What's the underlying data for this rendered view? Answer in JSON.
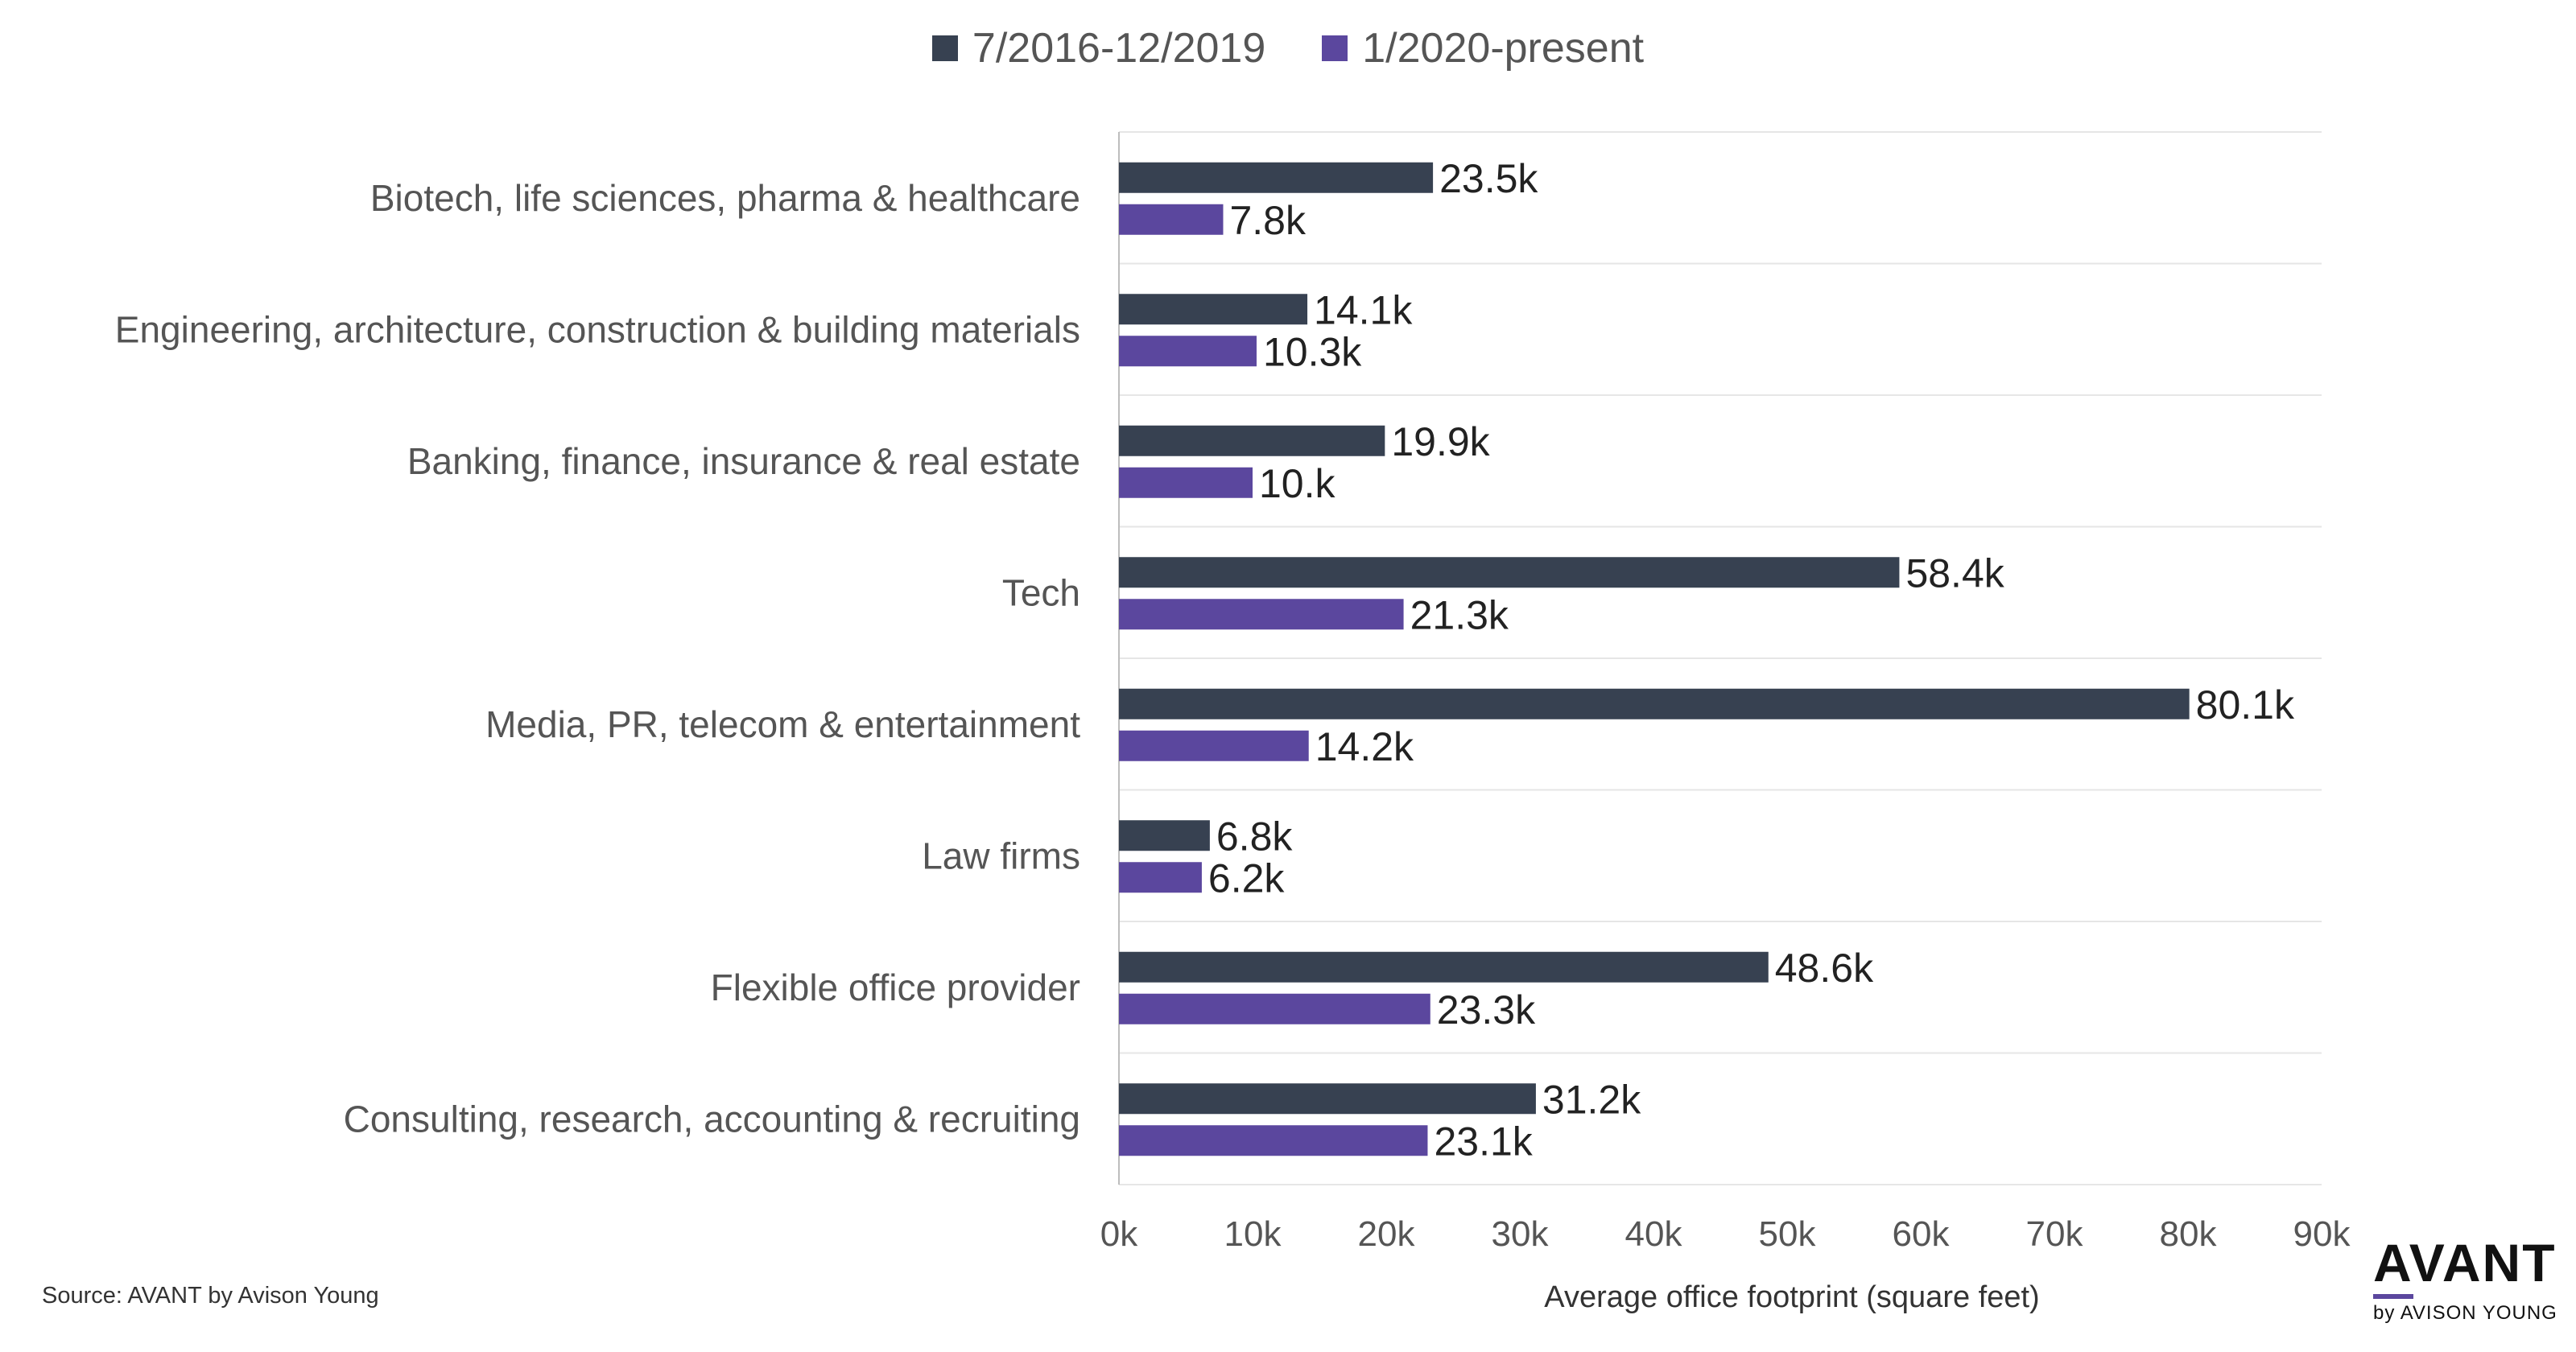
{
  "chart_data": {
    "type": "bar",
    "orientation": "horizontal",
    "categories": [
      "Biotech, life sciences, pharma & healthcare",
      "Engineering, architecture, construction & building materials",
      "Banking, finance, insurance & real estate",
      "Tech",
      "Media, PR, telecom & entertainment",
      "Law firms",
      "Flexible office provider",
      "Consulting, research, accounting & recruiting"
    ],
    "series": [
      {
        "name": "7/2016-12/2019",
        "color": "#374151",
        "values": [
          23.5,
          14.1,
          19.9,
          58.4,
          80.1,
          6.8,
          48.6,
          31.2
        ],
        "labels": [
          "23.5k",
          "14.1k",
          "19.9k",
          "58.4k",
          "80.1k",
          "6.8k",
          "48.6k",
          "31.2k"
        ]
      },
      {
        "name": "1/2020-present",
        "color": "#5b479e",
        "values": [
          7.8,
          10.3,
          10.0,
          21.3,
          14.2,
          6.2,
          23.3,
          23.1
        ],
        "labels": [
          "7.8k",
          "10.3k",
          "10.k",
          "21.3k",
          "14.2k",
          "6.2k",
          "23.3k",
          "23.1k"
        ]
      }
    ],
    "xlabel": "Average office footprint (square feet)",
    "xlim": [
      0,
      90
    ],
    "xticks": [
      0,
      10,
      20,
      30,
      40,
      50,
      60,
      70,
      80,
      90
    ],
    "xtick_labels": [
      "0k",
      "10k",
      "20k",
      "30k",
      "40k",
      "50k",
      "60k",
      "70k",
      "80k",
      "90k"
    ],
    "legend_position": "top-center",
    "grid": "horizontal-separators"
  },
  "source": "Source: AVANT by Avison Young",
  "logo": {
    "main": "AVANT",
    "sub": "by AVISON YOUNG",
    "accent": "#5b479e"
  }
}
